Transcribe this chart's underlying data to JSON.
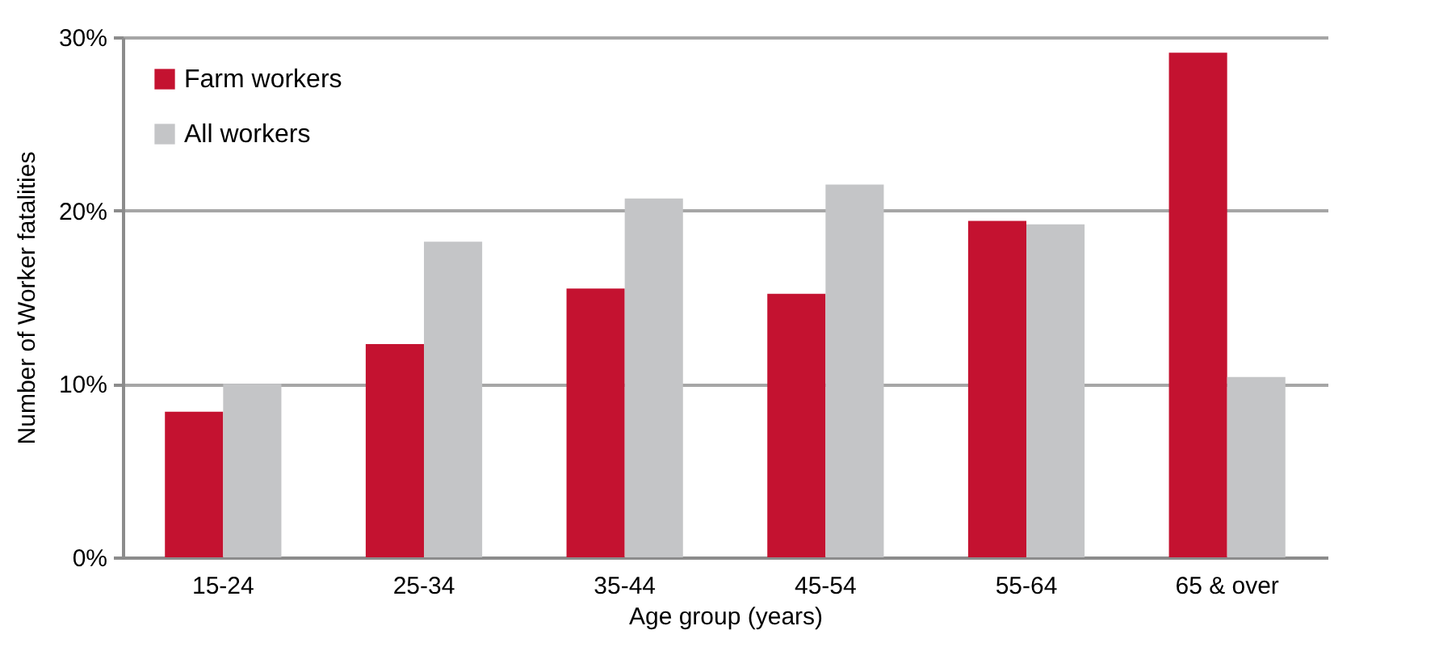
{
  "chart_data": {
    "type": "bar",
    "xlabel": "Age group (years)",
    "ylabel": "Number of  Worker fatalities",
    "categories": [
      "15-24",
      "25-34",
      "35-44",
      "45-54",
      "55-64",
      "65 & over"
    ],
    "series": [
      {
        "name": "Farm workers",
        "color": "#c41230",
        "values": [
          8.4,
          12.3,
          15.5,
          15.2,
          19.4,
          29.1
        ]
      },
      {
        "name": "All workers",
        "color": "#c4c5c7",
        "values": [
          10.0,
          18.2,
          20.7,
          21.5,
          19.2,
          10.4
        ]
      }
    ],
    "ylim": [
      0,
      30
    ],
    "yticks": [
      {
        "value": 0,
        "label": "0%"
      },
      {
        "value": 10,
        "label": "10%"
      },
      {
        "value": 20,
        "label": "20%"
      },
      {
        "value": 30,
        "label": "30%"
      }
    ],
    "grid": "y",
    "legend": "top left"
  }
}
